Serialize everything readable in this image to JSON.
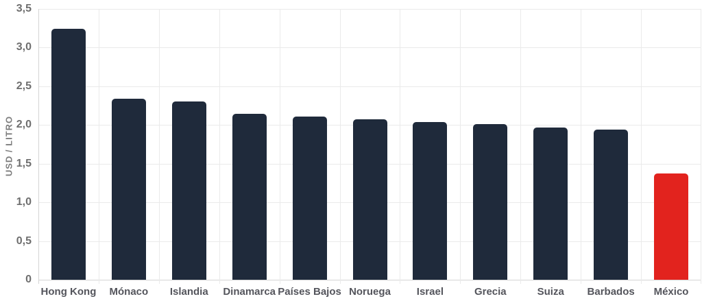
{
  "chart_data": {
    "type": "bar",
    "title": "",
    "categories": [
      "Hong Kong",
      "Mónaco",
      "Islandia",
      "Dinamarca",
      "Países Bajos",
      "Noruega",
      "Israel",
      "Grecia",
      "Suiza",
      "Barbados",
      "México"
    ],
    "values": [
      3.24,
      2.34,
      2.3,
      2.14,
      2.11,
      2.07,
      2.04,
      2.01,
      1.97,
      1.94,
      1.37
    ],
    "xlabel": "",
    "ylabel": "USD / LITRO",
    "ylim": [
      0,
      3.5
    ],
    "ytick_step": 0.5,
    "ytick_labels": [
      "0",
      "0,5",
      "1,0",
      "1,5",
      "2,0",
      "2,5",
      "3,0",
      "3,5"
    ],
    "grid": true,
    "legend": "none",
    "highlight_category": "México",
    "colors": {
      "bar": "#1f2a3b",
      "highlight": "#e2231e",
      "gridline": "#eaeaea",
      "axis_line": "#d4d4d4",
      "ytick_text": "#6e6e6e",
      "xtick_text": "#54555c",
      "ylabel_text": "#7d7d7d",
      "background": "#ffffff"
    }
  }
}
